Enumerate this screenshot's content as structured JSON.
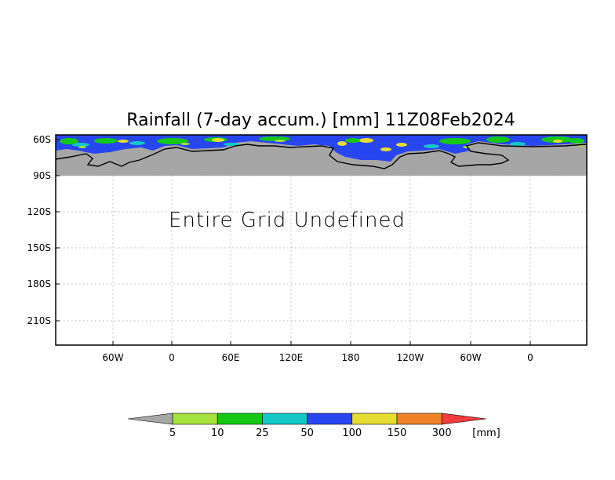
{
  "title": "Rainfall (7-day accum.) [mm] 11Z08Feb2024",
  "message": "Entire Grid Undefined",
  "y_ticks": [
    "60S",
    "90S",
    "120S",
    "150S",
    "180S",
    "210S"
  ],
  "x_ticks": [
    "60W",
    "0",
    "60E",
    "120E",
    "180",
    "120W",
    "60W",
    "0"
  ],
  "colorbar": {
    "labels": [
      "5",
      "10",
      "25",
      "50",
      "100",
      "150",
      "300"
    ],
    "unit": "[mm]",
    "colors": {
      "under": "#a6a6a6",
      "bins": [
        "#a6e23c",
        "#14c814",
        "#14c8c8",
        "#2846f0",
        "#e6dc32",
        "#f08228"
      ],
      "over": "#f03c3c"
    }
  },
  "colors": {
    "land_undefined": "#a6a6a6",
    "coastline": "#000000",
    "grid": "#b4b4b4"
  }
}
